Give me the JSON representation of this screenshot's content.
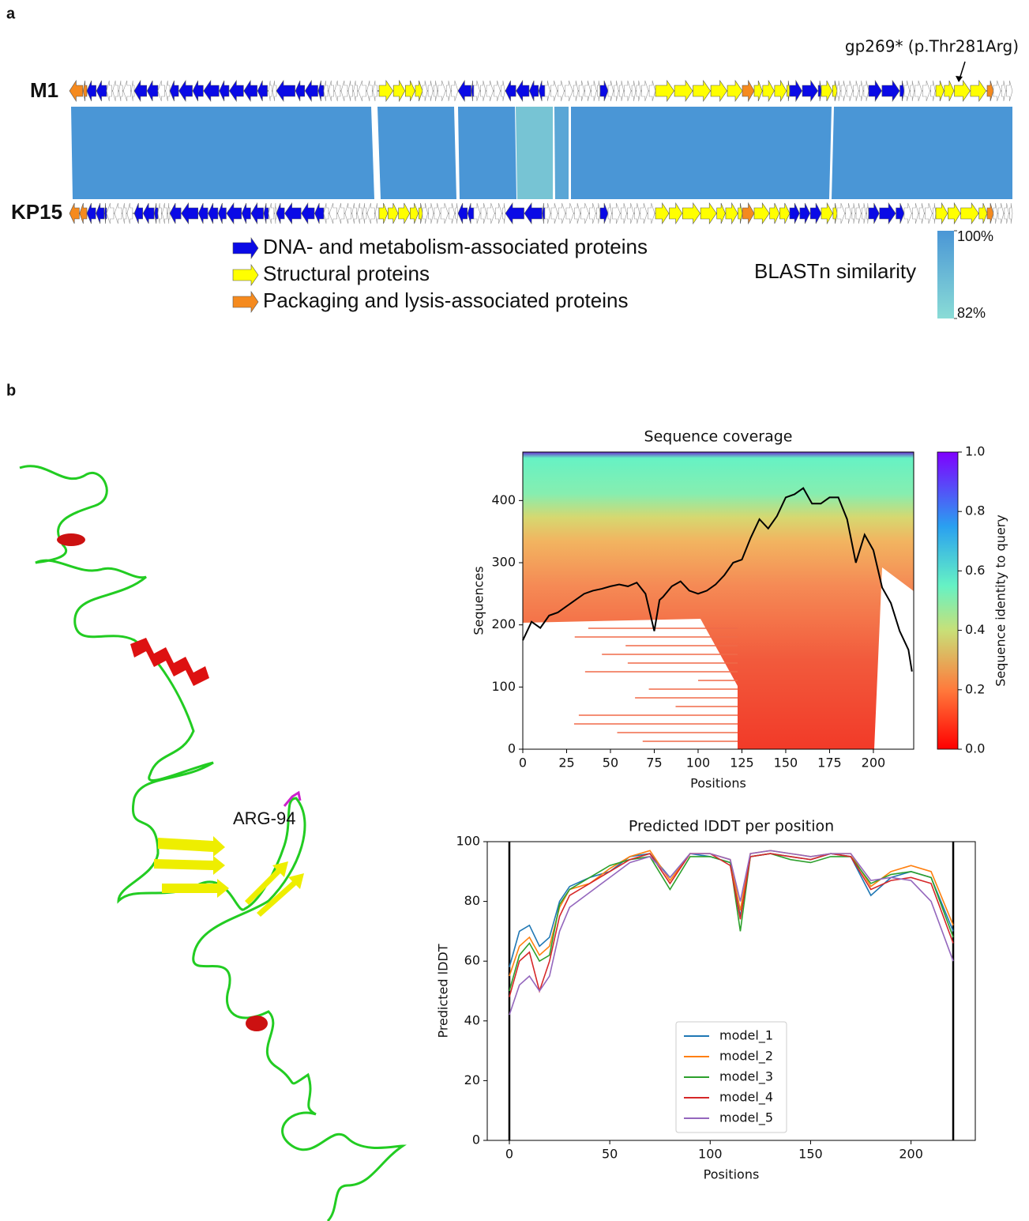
{
  "panel_a": {
    "label": "a",
    "genomes": [
      "M1",
      "KP15"
    ],
    "annotation": "gp269* (p.Thr281Arg)",
    "legend": [
      {
        "label": "DNA- and metabolism-associated proteins",
        "color": "#0a0ae6"
      },
      {
        "label": "Structural proteins",
        "color": "#ffff00"
      },
      {
        "label": "Packaging and lysis-associated proteins",
        "color": "#f58a1e"
      }
    ],
    "similarity_title": "BLASTn similarity",
    "similarity_range": [
      {
        "value": 100,
        "label": "100%"
      },
      {
        "value": 82,
        "label": "82%"
      }
    ]
  },
  "panel_b": {
    "label": "b",
    "structure_label": "ARG-94"
  },
  "chart_data": [
    {
      "type": "line",
      "title": "Sequence coverage",
      "x_label": "Positions",
      "y_label": "Sequences",
      "x": [
        0,
        5,
        10,
        15,
        20,
        25,
        30,
        35,
        40,
        45,
        50,
        55,
        60,
        65,
        70,
        75,
        78,
        80,
        85,
        90,
        95,
        100,
        105,
        110,
        115,
        120,
        125,
        130,
        135,
        140,
        145,
        150,
        155,
        160,
        165,
        170,
        175,
        180,
        185,
        190,
        195,
        200,
        205,
        210,
        215,
        220,
        222
      ],
      "values": [
        175,
        205,
        195,
        215,
        220,
        230,
        240,
        250,
        255,
        258,
        262,
        265,
        262,
        268,
        250,
        190,
        240,
        245,
        262,
        270,
        255,
        250,
        255,
        265,
        280,
        300,
        305,
        340,
        370,
        355,
        375,
        405,
        410,
        420,
        395,
        395,
        405,
        405,
        370,
        300,
        345,
        320,
        260,
        235,
        190,
        160,
        125
      ],
      "color": "#000000",
      "xlim": [
        0,
        223
      ],
      "ylim": [
        0,
        478
      ],
      "xticks": [
        0,
        25,
        50,
        75,
        100,
        125,
        150,
        175,
        200
      ],
      "yticks": [
        0,
        100,
        200,
        300,
        400
      ],
      "colorbar": {
        "label": "Sequence identity to query",
        "lim": [
          0,
          1
        ],
        "ticks": [
          {
            "value": 0,
            "label": "0.0"
          },
          0.2,
          0.4,
          0.6,
          0.8,
          {
            "value": 1,
            "label": "1.0"
          }
        ]
      }
    },
    {
      "type": "line",
      "title": "Predicted lDDT per position",
      "x_label": "Positions",
      "y_label": "Predicted lDDT",
      "x": [
        0,
        5,
        10,
        15,
        20,
        25,
        30,
        40,
        50,
        60,
        70,
        80,
        90,
        100,
        110,
        115,
        120,
        130,
        140,
        150,
        160,
        170,
        180,
        190,
        200,
        210,
        221
      ],
      "series": [
        {
          "name": "model_1",
          "color": "#1f77b4",
          "values": [
            58,
            70,
            72,
            65,
            68,
            80,
            85,
            88,
            90,
            95,
            96,
            88,
            96,
            95,
            93,
            75,
            95,
            96,
            95,
            94,
            96,
            95,
            82,
            88,
            90,
            88,
            70
          ]
        },
        {
          "name": "model_2",
          "color": "#ff7f0e",
          "values": [
            55,
            65,
            68,
            62,
            65,
            78,
            84,
            86,
            91,
            95,
            97,
            87,
            96,
            96,
            94,
            77,
            96,
            97,
            96,
            95,
            96,
            96,
            85,
            90,
            92,
            90,
            72
          ]
        },
        {
          "name": "model_3",
          "color": "#2ca02c",
          "values": [
            50,
            62,
            66,
            60,
            62,
            79,
            84,
            88,
            92,
            94,
            95,
            84,
            95,
            95,
            93,
            70,
            95,
            96,
            94,
            93,
            95,
            95,
            86,
            89,
            90,
            88,
            68
          ]
        },
        {
          "name": "model_4",
          "color": "#d62728",
          "values": [
            48,
            60,
            63,
            50,
            60,
            75,
            82,
            86,
            90,
            94,
            96,
            86,
            96,
            96,
            92,
            74,
            95,
            96,
            95,
            94,
            96,
            95,
            84,
            87,
            88,
            86,
            66
          ]
        },
        {
          "name": "model_5",
          "color": "#9467bd",
          "values": [
            42,
            52,
            55,
            50,
            55,
            70,
            78,
            83,
            88,
            93,
            95,
            88,
            96,
            96,
            94,
            80,
            96,
            97,
            96,
            95,
            96,
            96,
            87,
            88,
            87,
            80,
            60
          ]
        }
      ],
      "xlim": [
        -11,
        232
      ],
      "ylim": [
        0,
        100
      ],
      "xticks": [
        0,
        50,
        100,
        150,
        200
      ],
      "yticks": [
        0,
        20,
        40,
        60,
        80,
        100
      ],
      "vlines": [
        0,
        221
      ],
      "legend": "lower center"
    }
  ]
}
